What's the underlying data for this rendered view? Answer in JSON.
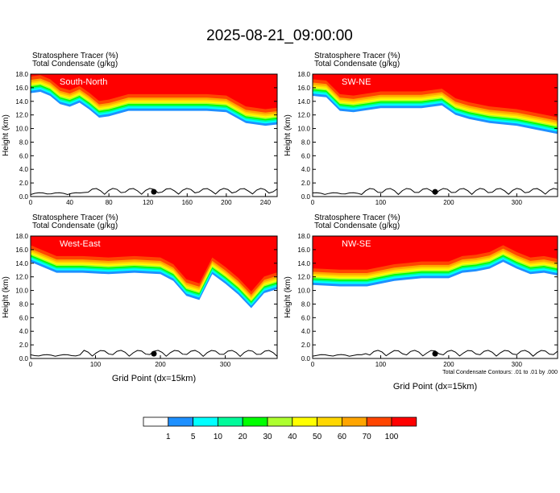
{
  "title": "2025-08-21_09:00:00",
  "xlabel": "Grid Point (dx=15km)",
  "ylabel": "Height (km)",
  "panel_headers": [
    "Stratosphere Tracer   (%)",
    "Total Condensate   (g/kg)"
  ],
  "contour_note": "Total Condensate Contours: .01 to .01 by .000",
  "colorbar": {
    "labels": [
      "1",
      "5",
      "10",
      "20",
      "30",
      "40",
      "50",
      "60",
      "70",
      "100"
    ],
    "colors": [
      "#ffffff",
      "#1e90ff",
      "#00ffff",
      "#00fa9a",
      "#00ff00",
      "#adff2f",
      "#ffff00",
      "#ffd700",
      "#ffa500",
      "#ff4500",
      "#ff0000"
    ]
  },
  "chart_data": [
    {
      "type": "heatmap",
      "panel": "South-North",
      "ylim": [
        0,
        18
      ],
      "xlim": [
        0,
        252
      ],
      "xticks": [
        0,
        40,
        80,
        120,
        160,
        200,
        240
      ],
      "yticks": [
        0.0,
        2.0,
        4.0,
        6.0,
        8.0,
        10.0,
        12.0,
        14.0,
        16.0,
        18.0
      ],
      "tracer_lower_edge": [
        [
          0,
          15.2
        ],
        [
          10,
          15.4
        ],
        [
          20,
          14.8
        ],
        [
          30,
          13.6
        ],
        [
          40,
          13.2
        ],
        [
          50,
          13.8
        ],
        [
          60,
          12.8
        ],
        [
          70,
          11.6
        ],
        [
          80,
          11.8
        ],
        [
          100,
          12.6
        ],
        [
          140,
          12.6
        ],
        [
          180,
          12.6
        ],
        [
          200,
          12.4
        ],
        [
          210,
          11.6
        ],
        [
          220,
          10.8
        ],
        [
          240,
          10.4
        ],
        [
          252,
          10.6
        ]
      ]
    },
    {
      "type": "heatmap",
      "panel": "SW-NE",
      "ylim": [
        0,
        18
      ],
      "xlim": [
        0,
        360
      ],
      "xticks": [
        0,
        100,
        200,
        300
      ],
      "yticks": [
        0.0,
        2.0,
        4.0,
        6.0,
        8.0,
        10.0,
        12.0,
        14.0,
        16.0,
        18.0
      ],
      "tracer_lower_edge": [
        [
          0,
          14.8
        ],
        [
          20,
          14.6
        ],
        [
          40,
          12.6
        ],
        [
          60,
          12.4
        ],
        [
          100,
          13.0
        ],
        [
          160,
          13.0
        ],
        [
          190,
          13.4
        ],
        [
          210,
          12.0
        ],
        [
          230,
          11.4
        ],
        [
          260,
          10.8
        ],
        [
          300,
          10.4
        ],
        [
          330,
          9.8
        ],
        [
          360,
          9.2
        ]
      ]
    },
    {
      "type": "heatmap",
      "panel": "West-East",
      "ylim": [
        0,
        18
      ],
      "xlim": [
        0,
        380
      ],
      "xticks": [
        0,
        100,
        200,
        300
      ],
      "yticks": [
        0.0,
        2.0,
        4.0,
        6.0,
        8.0,
        10.0,
        12.0,
        14.0,
        16.0,
        18.0
      ],
      "tracer_lower_edge": [
        [
          0,
          14.2
        ],
        [
          20,
          13.4
        ],
        [
          40,
          12.6
        ],
        [
          80,
          12.6
        ],
        [
          120,
          12.4
        ],
        [
          160,
          12.6
        ],
        [
          200,
          12.4
        ],
        [
          220,
          11.4
        ],
        [
          240,
          9.2
        ],
        [
          260,
          8.6
        ],
        [
          280,
          12.4
        ],
        [
          300,
          11.0
        ],
        [
          320,
          9.4
        ],
        [
          340,
          7.4
        ],
        [
          360,
          9.6
        ],
        [
          380,
          10.2
        ]
      ]
    },
    {
      "type": "heatmap",
      "panel": "NW-SE",
      "ylim": [
        0,
        18
      ],
      "xlim": [
        0,
        360
      ],
      "xticks": [
        0,
        100,
        200,
        300
      ],
      "yticks": [
        0.0,
        2.0,
        4.0,
        6.0,
        8.0,
        10.0,
        12.0,
        14.0,
        16.0,
        18.0
      ],
      "tracer_lower_edge": [
        [
          0,
          10.8
        ],
        [
          40,
          10.6
        ],
        [
          80,
          10.6
        ],
        [
          120,
          11.4
        ],
        [
          160,
          11.8
        ],
        [
          200,
          11.8
        ],
        [
          220,
          12.6
        ],
        [
          240,
          12.8
        ],
        [
          260,
          13.2
        ],
        [
          280,
          14.2
        ],
        [
          300,
          13.2
        ],
        [
          320,
          12.4
        ],
        [
          340,
          12.6
        ],
        [
          360,
          12.2
        ]
      ]
    }
  ]
}
